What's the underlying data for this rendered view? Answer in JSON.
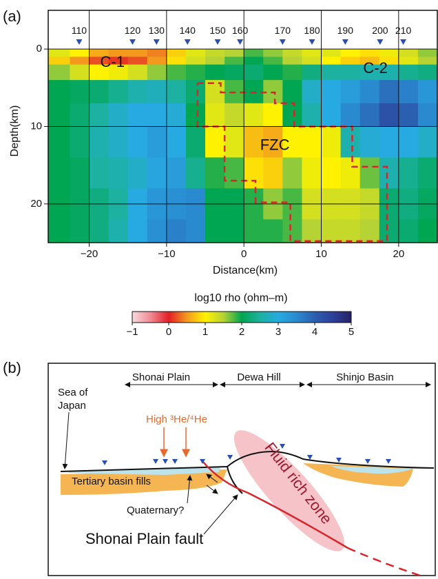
{
  "chart_data": {
    "type": "heatmap",
    "panel_label": "(a)",
    "xlabel": "Distance(km)",
    "ylabel": "Depth(km)",
    "xlim": [
      -25.3,
      25
    ],
    "ylim": [
      -5,
      25
    ],
    "xticks": [
      {
        "value": -20,
        "label": "−20"
      },
      {
        "value": -10,
        "label": "−10"
      },
      0,
      10,
      20
    ],
    "yticks": [
      0,
      10,
      20
    ],
    "grid": true,
    "x_edges": [
      -25.3,
      -22.5,
      -20,
      -17.5,
      -15,
      -12.5,
      -10,
      -7.5,
      -5,
      -2.5,
      0,
      2.5,
      5,
      7.5,
      10,
      12.5,
      15,
      17.5,
      20,
      22.5,
      25
    ],
    "depth_edges": [
      0,
      1,
      2,
      4,
      7,
      10,
      14,
      18,
      22,
      25
    ],
    "values": [
      [
        1.2,
        1.0,
        0.6,
        0.5,
        0.5,
        0.4,
        0.8,
        1.2,
        1.4,
        1.5,
        1.8,
        1.6,
        1.4,
        1.2,
        1.2,
        1.0,
        0.9,
        1.1,
        1.3,
        1.6
      ],
      [
        0.8,
        0.5,
        0.2,
        0.1,
        0.2,
        0.5,
        0.9,
        1.3,
        1.5,
        1.8,
        2.0,
        1.8,
        1.5,
        1.3,
        1.0,
        0.8,
        0.7,
        0.9,
        1.2,
        1.5
      ],
      [
        1.6,
        1.3,
        1.0,
        1.1,
        1.3,
        1.6,
        1.8,
        1.9,
        2.0,
        2.1,
        2.2,
        2.0,
        1.9,
        2.3,
        2.5,
        2.5,
        2.6,
        2.6,
        2.4,
        2.3
      ],
      [
        2.0,
        2.1,
        2.2,
        2.4,
        2.6,
        2.7,
        2.5,
        2.2,
        1.3,
        1.8,
        2.0,
        1.6,
        2.0,
        2.8,
        3.0,
        3.2,
        3.5,
        3.8,
        3.6,
        3.3
      ],
      [
        2.0,
        2.2,
        2.5,
        2.8,
        3.0,
        3.0,
        2.9,
        2.0,
        1.2,
        1.4,
        1.2,
        1.0,
        2.0,
        2.6,
        3.0,
        3.5,
        3.8,
        4.2,
        4.0,
        3.5
      ],
      [
        2.0,
        2.2,
        2.6,
        2.8,
        3.0,
        3.2,
        3.0,
        2.2,
        1.0,
        1.2,
        0.7,
        0.6,
        1.0,
        1.0,
        1.1,
        2.6,
        2.9,
        3.0,
        3.0,
        2.8
      ],
      [
        2.0,
        2.1,
        2.5,
        2.6,
        2.8,
        3.1,
        3.2,
        2.4,
        1.9,
        1.8,
        0.9,
        0.8,
        1.6,
        1.1,
        1.0,
        1.1,
        1.7,
        2.6,
        2.4,
        2.2
      ],
      [
        2.0,
        2.1,
        2.3,
        2.5,
        3.0,
        3.3,
        3.4,
        3.5,
        2.0,
        2.0,
        1.9,
        1.6,
        1.8,
        1.3,
        1.3,
        1.3,
        1.4,
        2.2,
        2.3,
        2.1
      ],
      [
        2.0,
        2.1,
        2.3,
        2.6,
        3.0,
        3.4,
        3.6,
        3.5,
        2.0,
        2.0,
        1.9,
        1.9,
        1.8,
        1.5,
        1.4,
        1.4,
        1.5,
        2.2,
        2.2,
        2.0
      ]
    ],
    "stations": {
      "names": [
        "110",
        "120",
        "130",
        "140",
        "150",
        "160",
        "170",
        "180",
        "190",
        "200",
        "210"
      ],
      "x": [
        -21.3,
        -14.4,
        -11.3,
        -7.3,
        -3.4,
        -0.5,
        5.0,
        8.8,
        13.1,
        17.6,
        20.6
      ],
      "color": "#2a4fb3"
    },
    "annotations": [
      {
        "text": "C-1",
        "x": -17,
        "depth": 1.8
      },
      {
        "text": "C-2",
        "x": 17,
        "depth": 2.6
      },
      {
        "text": "FZC",
        "x": 4,
        "depth": 12.5
      }
    ],
    "fzc_outline": {
      "x": [
        -6,
        -3,
        -3,
        4,
        4,
        6.5,
        6.5,
        14,
        14,
        18.5,
        18.5,
        6,
        6,
        1.5,
        1.5,
        -2.5,
        -2.5,
        -6,
        -6
      ],
      "depth": [
        4.4,
        4.4,
        5.6,
        5.6,
        7,
        7,
        10,
        10,
        15.2,
        15.2,
        24.8,
        24.8,
        19.8,
        19.8,
        17,
        17,
        10,
        10,
        4.4
      ],
      "color": "#d7262b"
    },
    "colorbar": {
      "label": "log10 rho (ohm–m)",
      "lim": [
        -1,
        5
      ],
      "ticks": [
        {
          "value": -1,
          "label": "−1"
        },
        0,
        1,
        2,
        3,
        4,
        5
      ],
      "colors": [
        "#f9d9de",
        "#f08a95",
        "#e31e24",
        "#f39a1e",
        "#fff200",
        "#b5d334",
        "#00a651",
        "#1cb1a0",
        "#27aae1",
        "#2a8ad0",
        "#2b5fb0",
        "#2d3f9b",
        "#262262"
      ]
    }
  },
  "diagram": {
    "panel_label": "(b)",
    "regions": [
      "Shonai Plain",
      "Dewa Hill",
      "Shinjo Basin"
    ],
    "sea": [
      "Sea of",
      "Japan"
    ],
    "helium": "High ³He/⁴He",
    "basin_fills": "Tertiary basin fills",
    "quaternary": "Quaternary?",
    "fault": "Shonai Plain fault",
    "fluid_zone": "Fluid rich zone"
  }
}
